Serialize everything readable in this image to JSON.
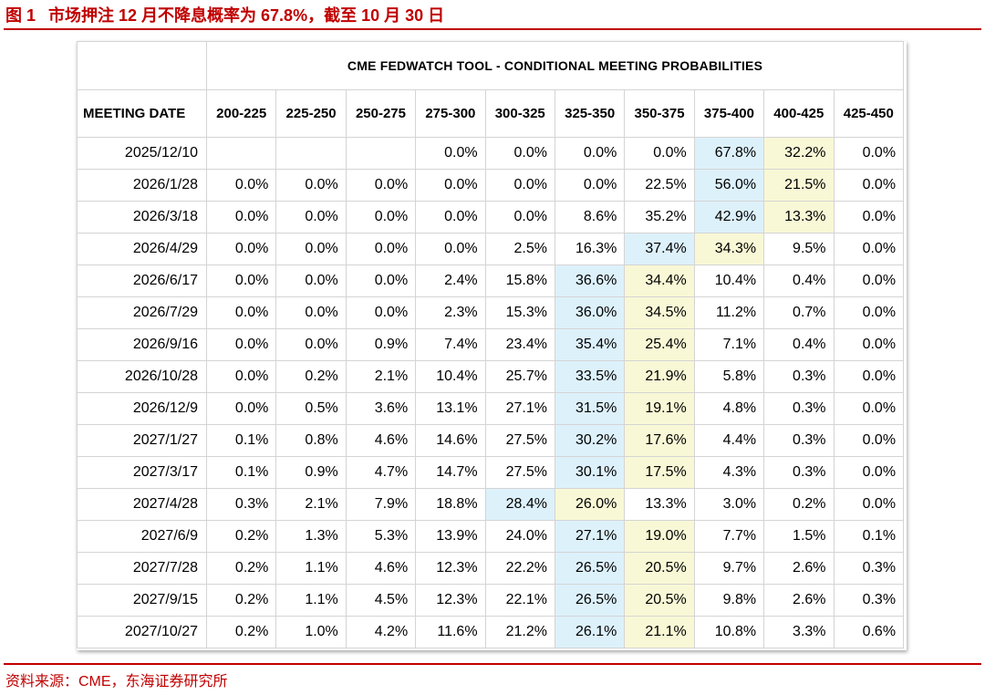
{
  "figure": {
    "label": "图 1",
    "title": "市场押注 12 月不降息概率为 67.8%，截至 10 月 30 日"
  },
  "source": "资料来源：CME，东海证券研究所",
  "table": {
    "banner": "CME FEDWATCH TOOL - CONDITIONAL MEETING PROBABILITIES",
    "first_header": "MEETING DATE",
    "columns": [
      "200-225",
      "225-250",
      "250-275",
      "275-300",
      "300-325",
      "325-350",
      "350-375",
      "375-400",
      "400-425",
      "425-450"
    ],
    "rows": [
      {
        "date": "2025/12/10",
        "values": [
          "",
          "",
          "",
          "0.0%",
          "0.0%",
          "0.0%",
          "0.0%",
          "67.8%",
          "32.2%",
          "0.0%"
        ],
        "blue": 7,
        "yellow": 8
      },
      {
        "date": "2026/1/28",
        "values": [
          "0.0%",
          "0.0%",
          "0.0%",
          "0.0%",
          "0.0%",
          "0.0%",
          "22.5%",
          "56.0%",
          "21.5%",
          "0.0%"
        ],
        "blue": 7,
        "yellow": 8
      },
      {
        "date": "2026/3/18",
        "values": [
          "0.0%",
          "0.0%",
          "0.0%",
          "0.0%",
          "0.0%",
          "8.6%",
          "35.2%",
          "42.9%",
          "13.3%",
          "0.0%"
        ],
        "blue": 7,
        "yellow": 8
      },
      {
        "date": "2026/4/29",
        "values": [
          "0.0%",
          "0.0%",
          "0.0%",
          "0.0%",
          "2.5%",
          "16.3%",
          "37.4%",
          "34.3%",
          "9.5%",
          "0.0%"
        ],
        "blue": 6,
        "yellow": 7
      },
      {
        "date": "2026/6/17",
        "values": [
          "0.0%",
          "0.0%",
          "0.0%",
          "2.4%",
          "15.8%",
          "36.6%",
          "34.4%",
          "10.4%",
          "0.4%",
          "0.0%"
        ],
        "blue": 5,
        "yellow": 6
      },
      {
        "date": "2026/7/29",
        "values": [
          "0.0%",
          "0.0%",
          "0.0%",
          "2.3%",
          "15.3%",
          "36.0%",
          "34.5%",
          "11.2%",
          "0.7%",
          "0.0%"
        ],
        "blue": 5,
        "yellow": 6
      },
      {
        "date": "2026/9/16",
        "values": [
          "0.0%",
          "0.0%",
          "0.9%",
          "7.4%",
          "23.4%",
          "35.4%",
          "25.4%",
          "7.1%",
          "0.4%",
          "0.0%"
        ],
        "blue": 5,
        "yellow": 6
      },
      {
        "date": "2026/10/28",
        "values": [
          "0.0%",
          "0.2%",
          "2.1%",
          "10.4%",
          "25.7%",
          "33.5%",
          "21.9%",
          "5.8%",
          "0.3%",
          "0.0%"
        ],
        "blue": 5,
        "yellow": 6
      },
      {
        "date": "2026/12/9",
        "values": [
          "0.0%",
          "0.5%",
          "3.6%",
          "13.1%",
          "27.1%",
          "31.5%",
          "19.1%",
          "4.8%",
          "0.3%",
          "0.0%"
        ],
        "blue": 5,
        "yellow": 6
      },
      {
        "date": "2027/1/27",
        "values": [
          "0.1%",
          "0.8%",
          "4.6%",
          "14.6%",
          "27.5%",
          "30.2%",
          "17.6%",
          "4.4%",
          "0.3%",
          "0.0%"
        ],
        "blue": 5,
        "yellow": 6
      },
      {
        "date": "2027/3/17",
        "values": [
          "0.1%",
          "0.9%",
          "4.7%",
          "14.7%",
          "27.5%",
          "30.1%",
          "17.5%",
          "4.3%",
          "0.3%",
          "0.0%"
        ],
        "blue": 5,
        "yellow": 6
      },
      {
        "date": "2027/4/28",
        "values": [
          "0.3%",
          "2.1%",
          "7.9%",
          "18.8%",
          "28.4%",
          "26.0%",
          "13.3%",
          "3.0%",
          "0.2%",
          "0.0%"
        ],
        "blue": 4,
        "yellow": 5
      },
      {
        "date": "2027/6/9",
        "values": [
          "0.2%",
          "1.3%",
          "5.3%",
          "13.9%",
          "24.0%",
          "27.1%",
          "19.0%",
          "7.7%",
          "1.5%",
          "0.1%"
        ],
        "blue": 5,
        "yellow": 6
      },
      {
        "date": "2027/7/28",
        "values": [
          "0.2%",
          "1.1%",
          "4.6%",
          "12.3%",
          "22.2%",
          "26.5%",
          "20.5%",
          "9.7%",
          "2.6%",
          "0.3%"
        ],
        "blue": 5,
        "yellow": 6
      },
      {
        "date": "2027/9/15",
        "values": [
          "0.2%",
          "1.1%",
          "4.5%",
          "12.3%",
          "22.1%",
          "26.5%",
          "20.5%",
          "9.8%",
          "2.6%",
          "0.3%"
        ],
        "blue": 5,
        "yellow": 6
      },
      {
        "date": "2027/10/27",
        "values": [
          "0.2%",
          "1.0%",
          "4.2%",
          "11.6%",
          "21.2%",
          "26.1%",
          "21.1%",
          "10.8%",
          "3.3%",
          "0.6%"
        ],
        "blue": 5,
        "yellow": 6
      }
    ]
  }
}
